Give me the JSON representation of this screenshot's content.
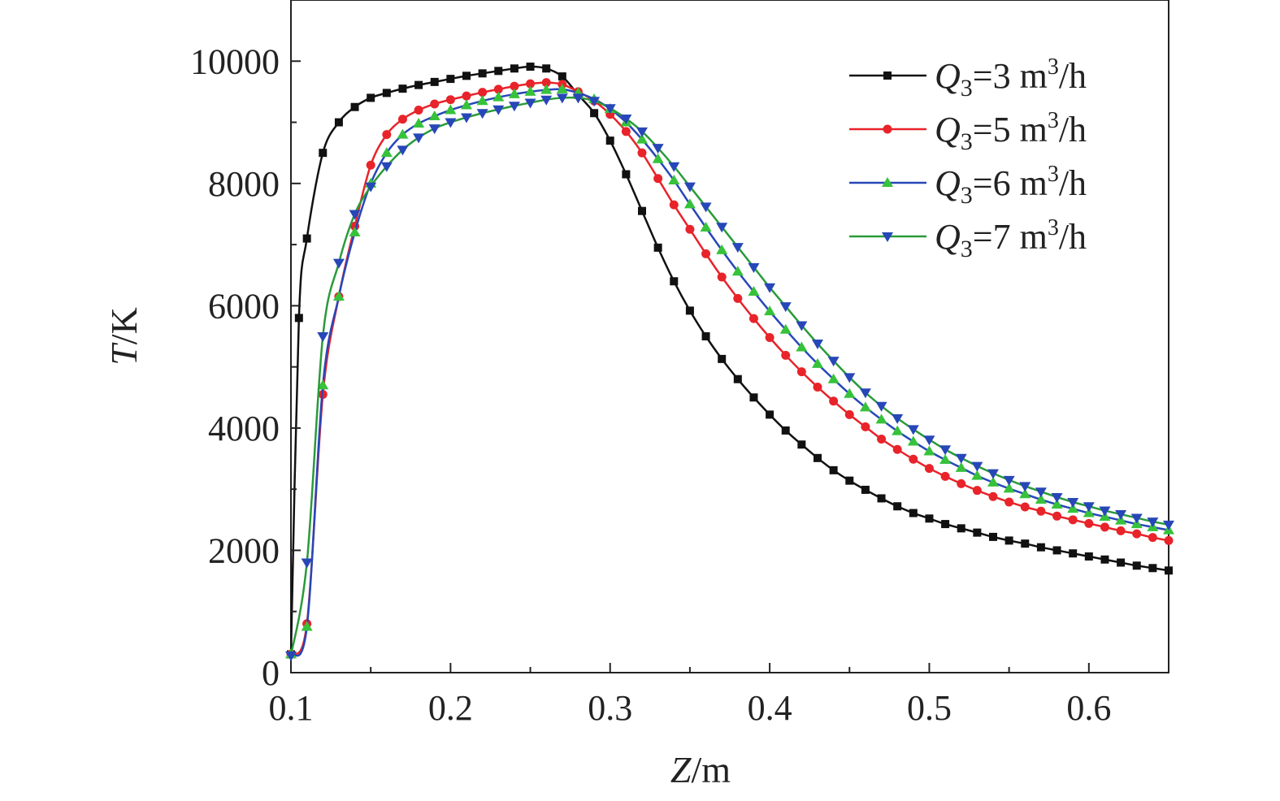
{
  "chart_data": {
    "type": "line",
    "xlabel": {
      "var": "Z",
      "unit": "/m"
    },
    "ylabel": {
      "var": "T",
      "unit": "/K"
    },
    "xlim": [
      0.1,
      0.65
    ],
    "ylim": [
      0,
      11000
    ],
    "x_ticks": [
      0.1,
      0.2,
      0.3,
      0.4,
      0.5,
      0.6
    ],
    "x_tick_labels": [
      "0.1",
      "0.2",
      "0.3",
      "0.4",
      "0.5",
      "0.6"
    ],
    "y_ticks": [
      0,
      2000,
      4000,
      6000,
      8000,
      10000
    ],
    "y_tick_labels": [
      "0",
      "2000",
      "4000",
      "6000",
      "8000",
      "10000"
    ],
    "grid": false,
    "legend_position": "top-right",
    "series": [
      {
        "name": "Q3=3 m3/h",
        "legend": {
          "var": "Q",
          "sub": "3",
          "eq": "=3 m",
          "sup": "3",
          "tail": "/h"
        },
        "color": "#111111",
        "marker": "square",
        "points": [
          [
            0.1,
            300
          ],
          [
            0.105,
            5800
          ],
          [
            0.11,
            7100
          ],
          [
            0.12,
            8500
          ],
          [
            0.13,
            9000
          ],
          [
            0.14,
            9250
          ],
          [
            0.15,
            9400
          ],
          [
            0.16,
            9480
          ],
          [
            0.17,
            9550
          ],
          [
            0.18,
            9610
          ],
          [
            0.19,
            9660
          ],
          [
            0.2,
            9710
          ],
          [
            0.21,
            9760
          ],
          [
            0.22,
            9800
          ],
          [
            0.23,
            9840
          ],
          [
            0.24,
            9880
          ],
          [
            0.25,
            9910
          ],
          [
            0.26,
            9880
          ],
          [
            0.27,
            9750
          ],
          [
            0.28,
            9450
          ],
          [
            0.29,
            9150
          ],
          [
            0.3,
            8700
          ],
          [
            0.31,
            8150
          ],
          [
            0.32,
            7550
          ],
          [
            0.33,
            6950
          ],
          [
            0.34,
            6400
          ],
          [
            0.35,
            5920
          ],
          [
            0.36,
            5500
          ],
          [
            0.37,
            5130
          ],
          [
            0.38,
            4800
          ],
          [
            0.39,
            4500
          ],
          [
            0.4,
            4220
          ],
          [
            0.41,
            3960
          ],
          [
            0.42,
            3730
          ],
          [
            0.43,
            3510
          ],
          [
            0.44,
            3310
          ],
          [
            0.45,
            3140
          ],
          [
            0.46,
            2990
          ],
          [
            0.47,
            2850
          ],
          [
            0.48,
            2720
          ],
          [
            0.49,
            2610
          ],
          [
            0.5,
            2520
          ],
          [
            0.51,
            2430
          ],
          [
            0.52,
            2360
          ],
          [
            0.53,
            2290
          ],
          [
            0.54,
            2220
          ],
          [
            0.55,
            2160
          ],
          [
            0.56,
            2110
          ],
          [
            0.57,
            2050
          ],
          [
            0.58,
            2000
          ],
          [
            0.59,
            1950
          ],
          [
            0.6,
            1900
          ],
          [
            0.61,
            1850
          ],
          [
            0.62,
            1800
          ],
          [
            0.63,
            1750
          ],
          [
            0.64,
            1710
          ],
          [
            0.65,
            1670
          ]
        ]
      },
      {
        "name": "Q3=5 m3/h",
        "legend": {
          "var": "Q",
          "sub": "3",
          "eq": "=5 m",
          "sup": "3",
          "tail": "/h"
        },
        "color": "#e8232a",
        "marker": "circle",
        "points": [
          [
            0.1,
            300
          ],
          [
            0.11,
            800
          ],
          [
            0.12,
            4550
          ],
          [
            0.13,
            6150
          ],
          [
            0.14,
            7300
          ],
          [
            0.15,
            8300
          ],
          [
            0.16,
            8800
          ],
          [
            0.17,
            9050
          ],
          [
            0.18,
            9200
          ],
          [
            0.19,
            9300
          ],
          [
            0.2,
            9370
          ],
          [
            0.21,
            9430
          ],
          [
            0.22,
            9490
          ],
          [
            0.23,
            9540
          ],
          [
            0.24,
            9590
          ],
          [
            0.25,
            9630
          ],
          [
            0.26,
            9650
          ],
          [
            0.27,
            9620
          ],
          [
            0.28,
            9500
          ],
          [
            0.29,
            9350
          ],
          [
            0.3,
            9130
          ],
          [
            0.31,
            8850
          ],
          [
            0.32,
            8500
          ],
          [
            0.33,
            8080
          ],
          [
            0.34,
            7650
          ],
          [
            0.35,
            7250
          ],
          [
            0.36,
            6850
          ],
          [
            0.37,
            6470
          ],
          [
            0.38,
            6120
          ],
          [
            0.39,
            5790
          ],
          [
            0.4,
            5480
          ],
          [
            0.41,
            5190
          ],
          [
            0.42,
            4920
          ],
          [
            0.43,
            4670
          ],
          [
            0.44,
            4440
          ],
          [
            0.45,
            4220
          ],
          [
            0.46,
            4020
          ],
          [
            0.47,
            3820
          ],
          [
            0.48,
            3650
          ],
          [
            0.49,
            3490
          ],
          [
            0.5,
            3340
          ],
          [
            0.51,
            3210
          ],
          [
            0.52,
            3090
          ],
          [
            0.53,
            2980
          ],
          [
            0.54,
            2880
          ],
          [
            0.55,
            2790
          ],
          [
            0.56,
            2710
          ],
          [
            0.57,
            2640
          ],
          [
            0.58,
            2560
          ],
          [
            0.59,
            2500
          ],
          [
            0.6,
            2440
          ],
          [
            0.61,
            2380
          ],
          [
            0.62,
            2320
          ],
          [
            0.63,
            2270
          ],
          [
            0.64,
            2210
          ],
          [
            0.65,
            2160
          ]
        ]
      },
      {
        "name": "Q3=6 m3/h",
        "legend": {
          "var": "Q",
          "sub": "3",
          "eq": "=6 m",
          "sup": "3",
          "tail": "/h"
        },
        "color": "#1f4fb0",
        "line_color": "#2747b8",
        "marker_color": "#36c23a",
        "marker": "triangle-up",
        "points": [
          [
            0.1,
            300
          ],
          [
            0.11,
            750
          ],
          [
            0.12,
            4700
          ],
          [
            0.13,
            6150
          ],
          [
            0.14,
            7200
          ],
          [
            0.15,
            8000
          ],
          [
            0.16,
            8500
          ],
          [
            0.17,
            8800
          ],
          [
            0.18,
            8980
          ],
          [
            0.19,
            9100
          ],
          [
            0.2,
            9200
          ],
          [
            0.21,
            9280
          ],
          [
            0.22,
            9350
          ],
          [
            0.23,
            9410
          ],
          [
            0.24,
            9460
          ],
          [
            0.25,
            9500
          ],
          [
            0.26,
            9530
          ],
          [
            0.27,
            9540
          ],
          [
            0.28,
            9480
          ],
          [
            0.29,
            9380
          ],
          [
            0.3,
            9220
          ],
          [
            0.31,
            9000
          ],
          [
            0.32,
            8720
          ],
          [
            0.33,
            8400
          ],
          [
            0.34,
            8050
          ],
          [
            0.35,
            7660
          ],
          [
            0.36,
            7280
          ],
          [
            0.37,
            6910
          ],
          [
            0.38,
            6560
          ],
          [
            0.39,
            6230
          ],
          [
            0.4,
            5910
          ],
          [
            0.41,
            5610
          ],
          [
            0.42,
            5320
          ],
          [
            0.43,
            5050
          ],
          [
            0.44,
            4800
          ],
          [
            0.45,
            4560
          ],
          [
            0.46,
            4340
          ],
          [
            0.47,
            4140
          ],
          [
            0.48,
            3950
          ],
          [
            0.49,
            3780
          ],
          [
            0.5,
            3620
          ],
          [
            0.51,
            3480
          ],
          [
            0.52,
            3350
          ],
          [
            0.53,
            3220
          ],
          [
            0.54,
            3110
          ],
          [
            0.55,
            3010
          ],
          [
            0.56,
            2920
          ],
          [
            0.57,
            2830
          ],
          [
            0.58,
            2750
          ],
          [
            0.59,
            2680
          ],
          [
            0.6,
            2610
          ],
          [
            0.61,
            2550
          ],
          [
            0.62,
            2490
          ],
          [
            0.63,
            2430
          ],
          [
            0.64,
            2380
          ],
          [
            0.65,
            2330
          ]
        ]
      },
      {
        "name": "Q3=7 m3/h",
        "legend": {
          "var": "Q",
          "sub": "3",
          "eq": "=7 m",
          "sup": "3",
          "tail": "/h"
        },
        "color": "#2a9a3a",
        "line_color": "#2a9a3a",
        "marker_color": "#2747b8",
        "marker": "triangle-down",
        "points": [
          [
            0.1,
            280
          ],
          [
            0.11,
            1800
          ],
          [
            0.12,
            5500
          ],
          [
            0.13,
            6700
          ],
          [
            0.14,
            7500
          ],
          [
            0.15,
            7950
          ],
          [
            0.16,
            8280
          ],
          [
            0.17,
            8550
          ],
          [
            0.18,
            8750
          ],
          [
            0.19,
            8900
          ],
          [
            0.2,
            9000
          ],
          [
            0.21,
            9080
          ],
          [
            0.22,
            9150
          ],
          [
            0.23,
            9210
          ],
          [
            0.24,
            9270
          ],
          [
            0.25,
            9320
          ],
          [
            0.26,
            9370
          ],
          [
            0.27,
            9400
          ],
          [
            0.28,
            9400
          ],
          [
            0.29,
            9350
          ],
          [
            0.3,
            9230
          ],
          [
            0.31,
            9060
          ],
          [
            0.32,
            8850
          ],
          [
            0.33,
            8580
          ],
          [
            0.34,
            8280
          ],
          [
            0.35,
            7950
          ],
          [
            0.36,
            7620
          ],
          [
            0.37,
            7290
          ],
          [
            0.38,
            6960
          ],
          [
            0.39,
            6630
          ],
          [
            0.4,
            6300
          ],
          [
            0.41,
            5990
          ],
          [
            0.42,
            5680
          ],
          [
            0.43,
            5380
          ],
          [
            0.44,
            5100
          ],
          [
            0.45,
            4830
          ],
          [
            0.46,
            4580
          ],
          [
            0.47,
            4360
          ],
          [
            0.48,
            4160
          ],
          [
            0.49,
            3980
          ],
          [
            0.5,
            3810
          ],
          [
            0.51,
            3650
          ],
          [
            0.52,
            3510
          ],
          [
            0.53,
            3380
          ],
          [
            0.54,
            3260
          ],
          [
            0.55,
            3150
          ],
          [
            0.56,
            3050
          ],
          [
            0.57,
            2960
          ],
          [
            0.58,
            2870
          ],
          [
            0.59,
            2790
          ],
          [
            0.6,
            2720
          ],
          [
            0.61,
            2650
          ],
          [
            0.62,
            2590
          ],
          [
            0.63,
            2530
          ],
          [
            0.64,
            2470
          ],
          [
            0.65,
            2420
          ]
        ]
      }
    ]
  }
}
